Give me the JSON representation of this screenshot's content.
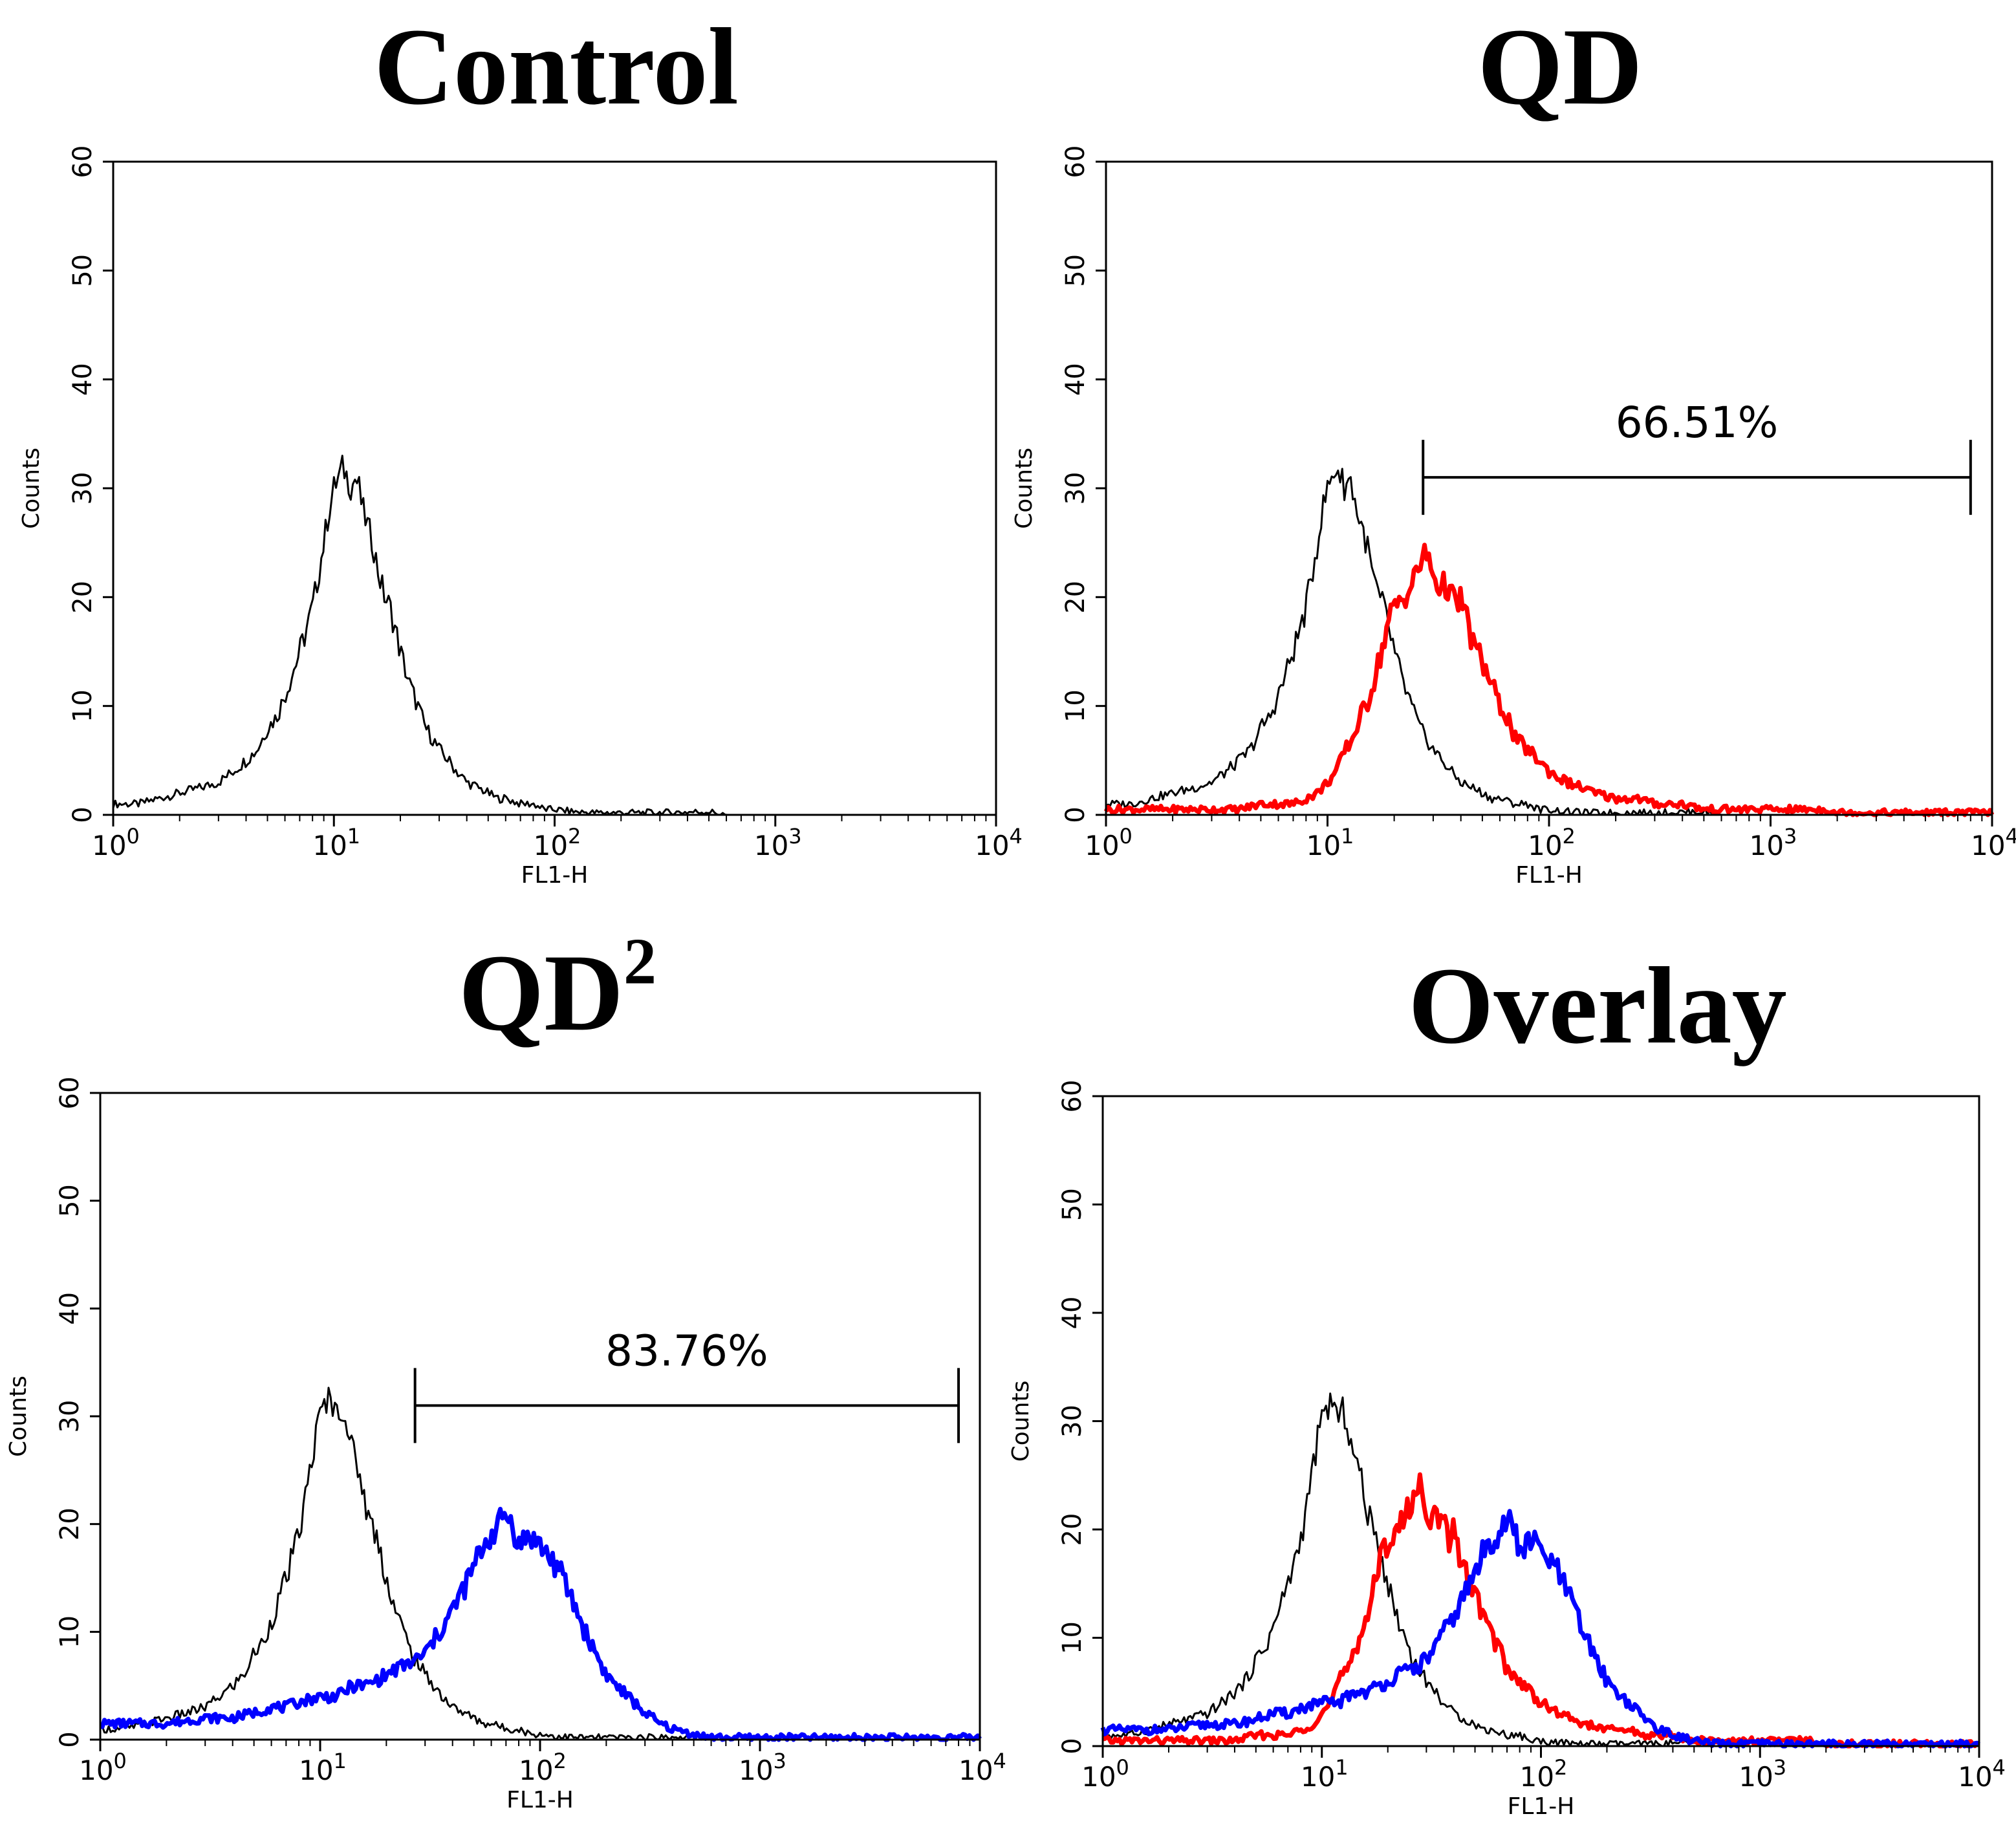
{
  "colors": {
    "control": "#000000",
    "qd": "#ff0000",
    "qd2": "#0000ff",
    "axes": "#000000"
  },
  "chart_data": [
    {
      "type": "area",
      "title": "Control",
      "xlabel": "FL1-H",
      "ylabel": "Counts",
      "xscale": "log",
      "xlim": [
        1,
        10000
      ],
      "ylim": [
        0,
        60
      ],
      "xticks": [
        {
          "base": "10",
          "exp": "0"
        },
        {
          "base": "10",
          "exp": "1"
        },
        {
          "base": "10",
          "exp": "2"
        },
        {
          "base": "10",
          "exp": "3"
        },
        {
          "base": "10",
          "exp": "4"
        }
      ],
      "yticks": [
        "0",
        "10",
        "20",
        "30",
        "40",
        "50",
        "60"
      ],
      "series": [
        {
          "key": "control",
          "color": "#000000",
          "x": [
            1,
            1.3,
            1.6,
            2,
            2.5,
            3,
            3.5,
            4,
            4.5,
            5,
            5.5,
            6,
            6.5,
            7,
            7.5,
            8,
            8.5,
            9,
            9.5,
            10,
            10.5,
            11,
            11.5,
            12,
            12.5,
            13,
            13.5,
            14,
            15,
            16,
            17,
            18,
            19,
            20,
            22,
            24,
            26,
            28,
            30,
            33,
            36,
            40,
            45,
            50,
            55,
            60,
            70,
            80,
            90,
            100,
            120,
            150,
            200,
            300,
            500,
            600,
            700,
            1000,
            3000,
            10000
          ],
          "y": [
            1,
            1,
            1.5,
            2,
            2.5,
            3,
            4,
            5,
            6,
            8,
            9,
            11,
            13,
            15,
            17,
            19,
            22,
            25,
            28,
            30,
            31,
            32,
            31,
            30,
            31,
            30,
            28,
            27,
            25,
            22,
            20,
            19,
            17,
            15,
            12,
            10,
            8,
            7,
            6,
            5,
            4,
            3,
            2.5,
            2,
            1.5,
            1.5,
            1,
            1,
            0.5,
            0.5,
            0.3,
            0.2,
            0.2,
            0.2,
            0.3,
            0,
            0,
            0,
            0,
            0
          ]
        }
      ]
    },
    {
      "type": "area",
      "title": "QD",
      "xlabel": "FL1-H",
      "ylabel": "Counts",
      "xscale": "log",
      "xlim": [
        1,
        10000
      ],
      "ylim": [
        0,
        60
      ],
      "xticks": [
        {
          "base": "10",
          "exp": "0"
        },
        {
          "base": "10",
          "exp": "1"
        },
        {
          "base": "10",
          "exp": "2"
        },
        {
          "base": "10",
          "exp": "3"
        },
        {
          "base": "10",
          "exp": "4"
        }
      ],
      "yticks": [
        "0",
        "10",
        "20",
        "30",
        "40",
        "50",
        "60"
      ],
      "gate": {
        "label": "66.51%",
        "x_start": 27,
        "x_end": 8000,
        "y": 31
      },
      "series": [
        {
          "key": "control",
          "color": "#000000",
          "x": [
            1,
            1.3,
            1.6,
            2,
            2.5,
            3,
            3.5,
            4,
            4.5,
            5,
            5.5,
            6,
            6.5,
            7,
            7.5,
            8,
            8.5,
            9,
            9.5,
            10,
            10.5,
            11,
            11.5,
            12,
            12.5,
            13,
            13.5,
            14,
            15,
            16,
            17,
            18,
            19,
            20,
            22,
            24,
            26,
            28,
            30,
            33,
            36,
            40,
            45,
            50,
            55,
            60,
            70,
            80,
            90,
            100,
            120,
            150,
            200,
            300,
            500,
            600,
            700,
            1000,
            3000,
            10000
          ],
          "y": [
            1,
            1,
            1.5,
            2,
            2.5,
            3,
            4,
            5,
            6,
            8,
            9,
            11,
            13,
            15,
            17,
            19,
            22,
            25,
            28,
            30,
            31,
            32,
            31,
            30,
            31,
            30,
            28,
            27,
            25,
            22,
            20,
            19,
            17,
            15,
            12,
            10,
            8,
            7,
            6,
            5,
            4,
            3,
            2.5,
            2,
            1.5,
            1.5,
            1,
            1,
            0.5,
            0.5,
            0.3,
            0.2,
            0.2,
            0.2,
            0.3,
            0,
            0,
            0,
            0,
            0
          ]
        },
        {
          "key": "qd",
          "color": "#ff0000",
          "x": [
            1,
            2,
            3,
            4,
            5,
            6,
            7,
            8,
            9,
            10,
            11,
            12,
            13,
            14,
            15,
            16,
            17,
            18,
            19,
            20,
            22,
            24,
            26,
            28,
            30,
            32,
            35,
            38,
            40,
            45,
            50,
            55,
            60,
            65,
            70,
            80,
            90,
            100,
            120,
            140,
            160,
            200,
            250,
            300,
            400,
            500,
            700,
            1000,
            1500,
            1800,
            2000,
            10000
          ],
          "y": [
            0.5,
            0.5,
            0.5,
            0.5,
            1,
            1,
            1,
            1.5,
            2,
            3,
            4,
            6,
            7,
            9,
            10,
            12,
            14,
            16,
            18,
            19,
            20,
            21,
            23,
            24,
            22,
            21,
            21,
            19,
            20,
            16,
            14,
            12,
            10,
            9,
            7,
            6,
            5,
            4,
            3,
            2.5,
            2,
            1.5,
            1.5,
            1,
            1,
            0.5,
            0.5,
            0.5,
            0.5,
            0.5,
            0.2,
            0.2
          ]
        }
      ]
    },
    {
      "type": "area",
      "title": "QD",
      "title_sup": "2",
      "xlabel": "FL1-H",
      "ylabel": "Counts",
      "xscale": "log",
      "xlim": [
        1,
        10000
      ],
      "ylim": [
        0,
        60
      ],
      "xticks": [
        {
          "base": "10",
          "exp": "0"
        },
        {
          "base": "10",
          "exp": "1"
        },
        {
          "base": "10",
          "exp": "2"
        },
        {
          "base": "10",
          "exp": "3"
        },
        {
          "base": "10",
          "exp": "4"
        }
      ],
      "yticks": [
        "0",
        "10",
        "20",
        "30",
        "40",
        "50",
        "60"
      ],
      "gate": {
        "label": "83.76%",
        "x_start": 27,
        "x_end": 8000,
        "y": 31
      },
      "series": [
        {
          "key": "control",
          "color": "#000000",
          "x": [
            1,
            1.3,
            1.6,
            2,
            2.5,
            3,
            3.5,
            4,
            4.5,
            5,
            5.5,
            6,
            6.5,
            7,
            7.5,
            8,
            8.5,
            9,
            9.5,
            10,
            10.5,
            11,
            11.5,
            12,
            12.5,
            13,
            13.5,
            14,
            15,
            16,
            17,
            18,
            19,
            20,
            22,
            24,
            26,
            28,
            30,
            33,
            36,
            40,
            45,
            50,
            55,
            60,
            70,
            80,
            90,
            100,
            120,
            150,
            200,
            300,
            500,
            600,
            700,
            1000,
            3000,
            10000
          ],
          "y": [
            1,
            1,
            1.5,
            2,
            2.5,
            3,
            4,
            5,
            6,
            8,
            9,
            11,
            13,
            15,
            17,
            19,
            22,
            25,
            28,
            30,
            31,
            32,
            31,
            30,
            31,
            30,
            28,
            27,
            25,
            22,
            20,
            19,
            17,
            15,
            12,
            10,
            8,
            7,
            6,
            5,
            4,
            3,
            2.5,
            2,
            1.5,
            1.5,
            1,
            1,
            0.5,
            0.5,
            0.3,
            0.2,
            0.2,
            0.2,
            0.3,
            0,
            0,
            0,
            0,
            0
          ]
        },
        {
          "key": "qd2",
          "color": "#0000ff",
          "x": [
            1,
            1.5,
            2,
            3,
            4,
            5,
            6,
            7,
            8,
            10,
            12,
            14,
            16,
            18,
            20,
            22,
            25,
            28,
            30,
            35,
            40,
            45,
            50,
            55,
            60,
            65,
            70,
            75,
            80,
            90,
            100,
            110,
            120,
            140,
            160,
            180,
            200,
            250,
            300,
            350,
            400,
            500,
            600,
            10000
          ],
          "y": [
            1.5,
            1.5,
            1.5,
            2,
            2,
            2.5,
            3,
            3,
            3.5,
            4,
            4,
            5,
            5,
            5.5,
            6,
            6.5,
            7,
            7.5,
            8,
            10,
            12,
            14,
            16,
            18,
            19,
            20,
            21,
            20,
            18,
            19,
            18,
            17,
            16,
            13,
            10,
            8,
            6,
            4,
            2.5,
            1.5,
            1,
            0.5,
            0.2,
            0.2
          ]
        }
      ]
    },
    {
      "type": "area",
      "title": "Overlay",
      "xlabel": "FL1-H",
      "ylabel": "Counts",
      "xscale": "log",
      "xlim": [
        1,
        10000
      ],
      "ylim": [
        0,
        60
      ],
      "xticks": [
        {
          "base": "10",
          "exp": "0"
        },
        {
          "base": "10",
          "exp": "1"
        },
        {
          "base": "10",
          "exp": "2"
        },
        {
          "base": "10",
          "exp": "3"
        },
        {
          "base": "10",
          "exp": "4"
        }
      ],
      "yticks": [
        "0",
        "10",
        "20",
        "30",
        "40",
        "50",
        "60"
      ],
      "series": [
        {
          "key": "control",
          "color": "#000000",
          "x": [
            1,
            1.3,
            1.6,
            2,
            2.5,
            3,
            3.5,
            4,
            4.5,
            5,
            5.5,
            6,
            6.5,
            7,
            7.5,
            8,
            8.5,
            9,
            9.5,
            10,
            10.5,
            11,
            11.5,
            12,
            12.5,
            13,
            13.5,
            14,
            15,
            16,
            17,
            18,
            19,
            20,
            22,
            24,
            26,
            28,
            30,
            33,
            36,
            40,
            45,
            50,
            55,
            60,
            70,
            80,
            90,
            100,
            120,
            150,
            200,
            300,
            500,
            600,
            700,
            1000,
            3000,
            10000
          ],
          "y": [
            1,
            1,
            1.5,
            2,
            2.5,
            3,
            4,
            5,
            6,
            8,
            9,
            11,
            13,
            15,
            17,
            19,
            22,
            25,
            28,
            30,
            31,
            32,
            31,
            30,
            31,
            30,
            28,
            27,
            25,
            22,
            20,
            19,
            17,
            15,
            12,
            10,
            8,
            7,
            6,
            5,
            4,
            3,
            2.5,
            2,
            1.5,
            1.5,
            1,
            1,
            0.5,
            0.5,
            0.3,
            0.2,
            0.2,
            0.2,
            0.3,
            0,
            0,
            0,
            0,
            0
          ]
        },
        {
          "key": "qd",
          "color": "#ff0000",
          "x": [
            1,
            2,
            3,
            4,
            5,
            6,
            7,
            8,
            9,
            10,
            11,
            12,
            13,
            14,
            15,
            16,
            17,
            18,
            19,
            20,
            22,
            24,
            26,
            28,
            30,
            32,
            35,
            38,
            40,
            45,
            50,
            55,
            60,
            65,
            70,
            80,
            90,
            100,
            120,
            140,
            160,
            200,
            250,
            300,
            400,
            500,
            700,
            1000,
            1500,
            1800,
            2000,
            10000
          ],
          "y": [
            0.5,
            0.5,
            0.5,
            0.5,
            1,
            1,
            1,
            1.5,
            2,
            3,
            4,
            6,
            7,
            9,
            10,
            12,
            14,
            16,
            18,
            19,
            20,
            21,
            23,
            24,
            22,
            21,
            21,
            19,
            20,
            16,
            14,
            12,
            10,
            9,
            7,
            6,
            5,
            4,
            3,
            2.5,
            2,
            1.5,
            1.5,
            1,
            1,
            0.5,
            0.5,
            0.5,
            0.5,
            0.5,
            0.2,
            0.2
          ]
        },
        {
          "key": "qd2",
          "color": "#0000ff",
          "x": [
            1,
            1.5,
            2,
            3,
            4,
            5,
            6,
            7,
            8,
            10,
            12,
            14,
            16,
            18,
            20,
            22,
            25,
            28,
            30,
            35,
            40,
            45,
            50,
            55,
            60,
            65,
            70,
            75,
            80,
            90,
            100,
            110,
            120,
            140,
            160,
            180,
            200,
            250,
            300,
            350,
            400,
            500,
            600,
            10000
          ],
          "y": [
            1.5,
            1.5,
            1.5,
            2,
            2,
            2.5,
            3,
            3,
            3.5,
            4,
            4,
            5,
            5,
            5.5,
            6,
            6.5,
            7,
            7.5,
            8,
            10,
            12,
            14,
            16,
            18,
            19,
            20,
            21,
            20,
            18,
            19,
            18,
            17,
            16,
            13,
            10,
            8,
            6,
            4,
            2.5,
            1.5,
            1,
            0.5,
            0.2,
            0.2
          ]
        }
      ]
    }
  ]
}
